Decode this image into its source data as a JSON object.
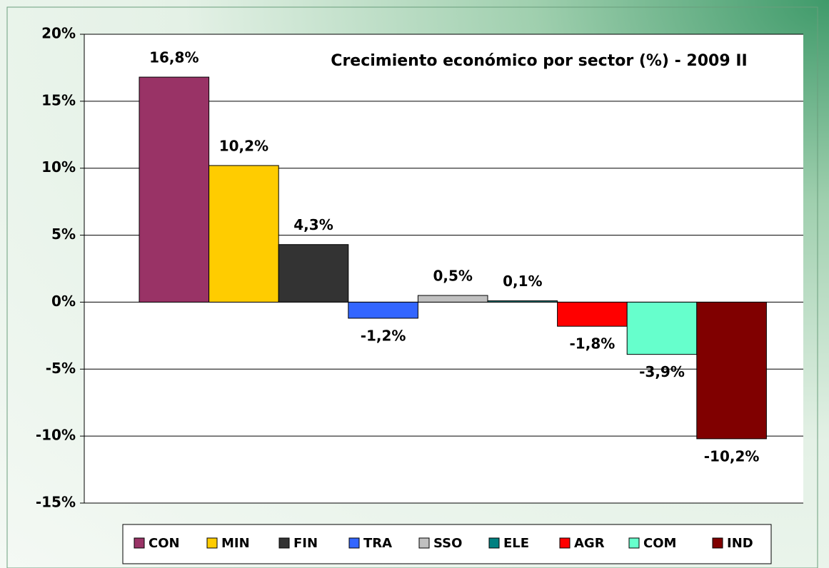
{
  "chart_data": {
    "type": "bar",
    "title": "Crecimiento económico por sector (%)  - 2009 II",
    "ylim": [
      -15,
      20
    ],
    "yticks": [
      {
        "value": -15,
        "label": "-15%"
      },
      {
        "value": -10,
        "label": "-10%"
      },
      {
        "value": -5,
        "label": "-5%"
      },
      {
        "value": 0,
        "label": "0%"
      },
      {
        "value": 5,
        "label": "5%"
      },
      {
        "value": 10,
        "label": "10%"
      },
      {
        "value": 15,
        "label": "15%"
      },
      {
        "value": 20,
        "label": "20%"
      }
    ],
    "grid": true,
    "legend": "bottom",
    "series": [
      {
        "name": "CON",
        "color": "#993366",
        "values": [
          16.8
        ],
        "value_labels": [
          "16,8%"
        ]
      },
      {
        "name": "MIN",
        "color": "#ffcc00",
        "values": [
          10.2
        ],
        "value_labels": [
          "10,2%"
        ]
      },
      {
        "name": "FIN",
        "color": "#333333",
        "values": [
          4.3
        ],
        "value_labels": [
          "4,3%"
        ]
      },
      {
        "name": "TRA",
        "color": "#3366ff",
        "values": [
          -1.2
        ],
        "value_labels": [
          "-1,2%"
        ]
      },
      {
        "name": "SSO",
        "color": "#c0c0c0",
        "values": [
          0.5
        ],
        "value_labels": [
          "0,5%"
        ]
      },
      {
        "name": "ELE",
        "color": "#008080",
        "values": [
          0.1
        ],
        "value_labels": [
          "0,1%"
        ]
      },
      {
        "name": "AGR",
        "color": "#ff0000",
        "values": [
          -1.8
        ],
        "value_labels": [
          "-1,8%"
        ]
      },
      {
        "name": "COM",
        "color": "#66ffcc",
        "values": [
          -3.9
        ],
        "value_labels": [
          "-3,9%"
        ]
      },
      {
        "name": "IND",
        "color": "#800000",
        "values": [
          -10.2
        ],
        "value_labels": [
          "-10,2%"
        ]
      }
    ]
  }
}
